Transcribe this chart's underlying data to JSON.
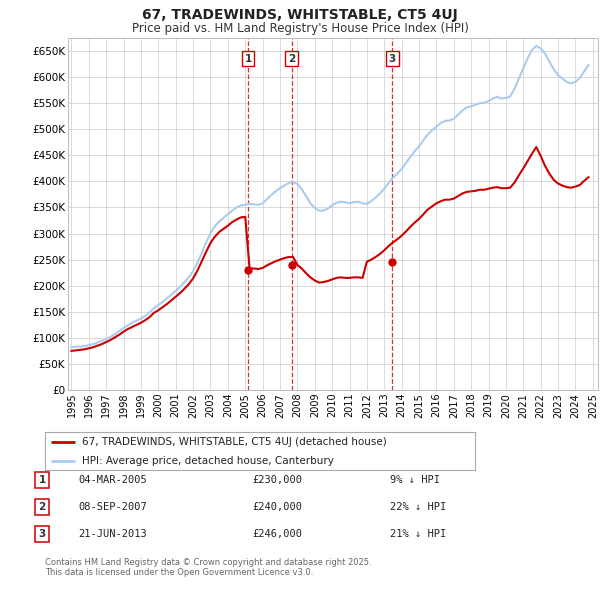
{
  "title": "67, TRADEWINDS, WHITSTABLE, CT5 4UJ",
  "subtitle": "Price paid vs. HM Land Registry's House Price Index (HPI)",
  "bg_color": "#ffffff",
  "plot_bg_color": "#ffffff",
  "grid_color": "#cccccc",
  "hpi_color": "#aaccee",
  "price_color": "#cc0000",
  "ylim": [
    0,
    675000
  ],
  "yticks": [
    0,
    50000,
    100000,
    150000,
    200000,
    250000,
    300000,
    350000,
    400000,
    450000,
    500000,
    550000,
    600000,
    650000
  ],
  "ytick_labels": [
    "£0",
    "£50K",
    "£100K",
    "£150K",
    "£200K",
    "£250K",
    "£300K",
    "£350K",
    "£400K",
    "£450K",
    "£500K",
    "£550K",
    "£600K",
    "£650K"
  ],
  "sale_date_nums": [
    2005.17,
    2007.67,
    2013.47
  ],
  "sale_prices": [
    230000,
    240000,
    246000
  ],
  "sale_labels": [
    "1",
    "2",
    "3"
  ],
  "legend_entries": [
    "67, TRADEWINDS, WHITSTABLE, CT5 4UJ (detached house)",
    "HPI: Average price, detached house, Canterbury"
  ],
  "table_rows": [
    {
      "num": "1",
      "date": "04-MAR-2005",
      "price": "£230,000",
      "rel": "9% ↓ HPI"
    },
    {
      "num": "2",
      "date": "08-SEP-2007",
      "price": "£240,000",
      "rel": "22% ↓ HPI"
    },
    {
      "num": "3",
      "date": "21-JUN-2013",
      "price": "£246,000",
      "rel": "21% ↓ HPI"
    }
  ],
  "footer": "Contains HM Land Registry data © Crown copyright and database right 2025.\nThis data is licensed under the Open Government Licence v3.0.",
  "hpi_years": [
    1995.0,
    1995.25,
    1995.5,
    1995.75,
    1996.0,
    1996.25,
    1996.5,
    1996.75,
    1997.0,
    1997.25,
    1997.5,
    1997.75,
    1998.0,
    1998.25,
    1998.5,
    1998.75,
    1999.0,
    1999.25,
    1999.5,
    1999.75,
    2000.0,
    2000.25,
    2000.5,
    2000.75,
    2001.0,
    2001.25,
    2001.5,
    2001.75,
    2002.0,
    2002.25,
    2002.5,
    2002.75,
    2003.0,
    2003.25,
    2003.5,
    2003.75,
    2004.0,
    2004.25,
    2004.5,
    2004.75,
    2005.0,
    2005.25,
    2005.5,
    2005.75,
    2006.0,
    2006.25,
    2006.5,
    2006.75,
    2007.0,
    2007.25,
    2007.5,
    2007.75,
    2008.0,
    2008.25,
    2008.5,
    2008.75,
    2009.0,
    2009.25,
    2009.5,
    2009.75,
    2010.0,
    2010.25,
    2010.5,
    2010.75,
    2011.0,
    2011.25,
    2011.5,
    2011.75,
    2012.0,
    2012.25,
    2012.5,
    2012.75,
    2013.0,
    2013.25,
    2013.5,
    2013.75,
    2014.0,
    2014.25,
    2014.5,
    2014.75,
    2015.0,
    2015.25,
    2015.5,
    2015.75,
    2016.0,
    2016.25,
    2016.5,
    2016.75,
    2017.0,
    2017.25,
    2017.5,
    2017.75,
    2018.0,
    2018.25,
    2018.5,
    2018.75,
    2019.0,
    2019.25,
    2019.5,
    2019.75,
    2020.0,
    2020.25,
    2020.5,
    2020.75,
    2021.0,
    2021.25,
    2021.5,
    2021.75,
    2022.0,
    2022.25,
    2022.5,
    2022.75,
    2023.0,
    2023.25,
    2023.5,
    2023.75,
    2024.0,
    2024.25,
    2024.5,
    2024.75
  ],
  "hpi_values": [
    82000,
    83000,
    83500,
    84000,
    86000,
    88000,
    91000,
    94000,
    98000,
    102000,
    107000,
    113000,
    119000,
    124000,
    129000,
    133000,
    137000,
    142000,
    149000,
    157000,
    163000,
    169000,
    176000,
    183000,
    190000,
    198000,
    207000,
    216000,
    228000,
    244000,
    263000,
    283000,
    301000,
    314000,
    323000,
    330000,
    337000,
    344000,
    350000,
    354000,
    355000,
    357000,
    356000,
    355000,
    358000,
    366000,
    374000,
    381000,
    387000,
    392000,
    397000,
    399000,
    395000,
    385000,
    372000,
    358000,
    349000,
    344000,
    344000,
    348000,
    354000,
    359000,
    361000,
    360000,
    358000,
    360000,
    361000,
    358000,
    357000,
    362000,
    369000,
    377000,
    386000,
    397000,
    407000,
    415000,
    424000,
    435000,
    447000,
    458000,
    467000,
    479000,
    490000,
    498000,
    505000,
    512000,
    516000,
    517000,
    520000,
    528000,
    536000,
    542000,
    544000,
    547000,
    550000,
    551000,
    554000,
    559000,
    562000,
    559000,
    560000,
    563000,
    578000,
    598000,
    617000,
    636000,
    652000,
    660000,
    655000,
    645000,
    630000,
    615000,
    604000,
    597000,
    591000,
    588000,
    591000,
    598000,
    611000,
    623000
  ],
  "price_years": [
    1995.0,
    1995.25,
    1995.5,
    1995.75,
    1996.0,
    1996.25,
    1996.5,
    1996.75,
    1997.0,
    1997.25,
    1997.5,
    1997.75,
    1998.0,
    1998.25,
    1998.5,
    1998.75,
    1999.0,
    1999.25,
    1999.5,
    1999.75,
    2000.0,
    2000.25,
    2000.5,
    2000.75,
    2001.0,
    2001.25,
    2001.5,
    2001.75,
    2002.0,
    2002.25,
    2002.5,
    2002.75,
    2003.0,
    2003.25,
    2003.5,
    2003.75,
    2004.0,
    2004.25,
    2004.5,
    2004.75,
    2005.0,
    2005.25,
    2005.5,
    2005.75,
    2006.0,
    2006.25,
    2006.5,
    2006.75,
    2007.0,
    2007.25,
    2007.5,
    2007.75,
    2008.0,
    2008.25,
    2008.5,
    2008.75,
    2009.0,
    2009.25,
    2009.5,
    2009.75,
    2010.0,
    2010.25,
    2010.5,
    2010.75,
    2011.0,
    2011.25,
    2011.5,
    2011.75,
    2012.0,
    2012.25,
    2012.5,
    2012.75,
    2013.0,
    2013.25,
    2013.5,
    2013.75,
    2014.0,
    2014.25,
    2014.5,
    2014.75,
    2015.0,
    2015.25,
    2015.5,
    2015.75,
    2016.0,
    2016.25,
    2016.5,
    2016.75,
    2017.0,
    2017.25,
    2017.5,
    2017.75,
    2018.0,
    2018.25,
    2018.5,
    2018.75,
    2019.0,
    2019.25,
    2019.5,
    2019.75,
    2020.0,
    2020.25,
    2020.5,
    2020.75,
    2021.0,
    2021.25,
    2021.5,
    2021.75,
    2022.0,
    2022.25,
    2022.5,
    2022.75,
    2023.0,
    2023.25,
    2023.5,
    2023.75,
    2024.0,
    2024.25,
    2024.5,
    2024.75
  ],
  "price_values": [
    75000,
    76000,
    77000,
    78000,
    80000,
    82000,
    85000,
    88000,
    92000,
    96000,
    101000,
    106000,
    112000,
    117000,
    121000,
    125000,
    129000,
    134000,
    140000,
    148000,
    153000,
    159000,
    165000,
    172000,
    179000,
    186000,
    194000,
    203000,
    214000,
    229000,
    247000,
    265000,
    282000,
    294000,
    303000,
    309000,
    315000,
    322000,
    327000,
    331000,
    332000,
    233000,
    233000,
    232000,
    234000,
    239000,
    243000,
    247000,
    250000,
    253000,
    255000,
    255000,
    240000,
    233000,
    224000,
    216000,
    210000,
    206000,
    207000,
    209000,
    212000,
    215000,
    216000,
    215000,
    215000,
    216000,
    216000,
    215000,
    246000,
    250000,
    255000,
    261000,
    268000,
    276000,
    283000,
    289000,
    296000,
    304000,
    313000,
    321000,
    328000,
    337000,
    346000,
    352000,
    358000,
    362000,
    365000,
    365000,
    367000,
    372000,
    377000,
    380000,
    381000,
    382000,
    384000,
    384000,
    386000,
    388000,
    389000,
    387000,
    387000,
    388000,
    398000,
    412000,
    425000,
    439000,
    453000,
    466000,
    449000,
    430000,
    415000,
    403000,
    396000,
    392000,
    389000,
    388000,
    390000,
    393000,
    401000,
    408000
  ]
}
